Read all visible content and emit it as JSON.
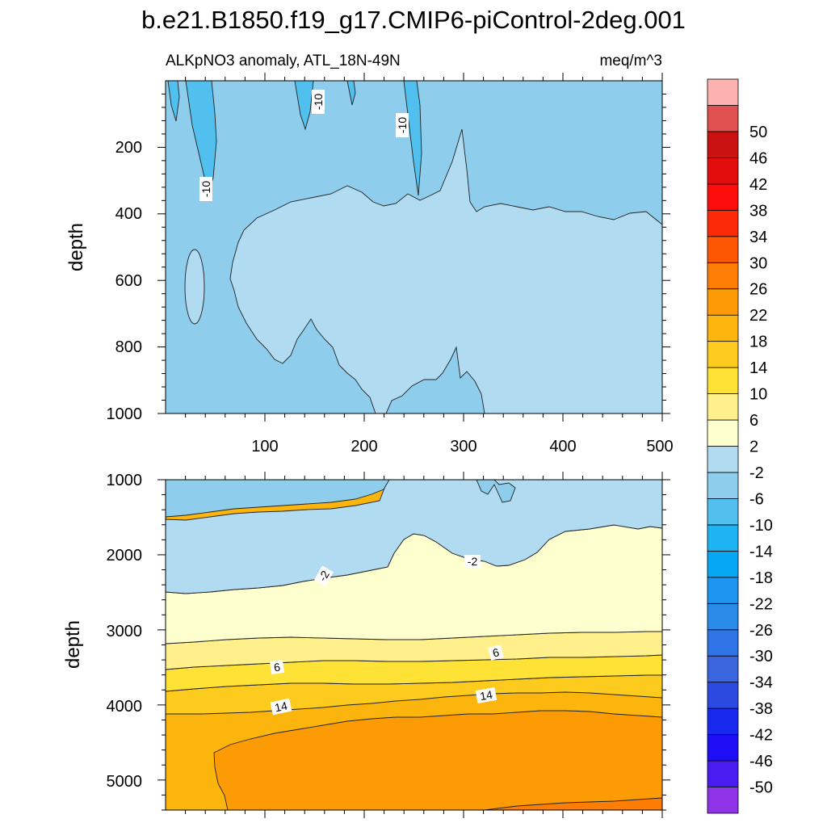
{
  "title": "b.e21.B1850.f19_g17.CMIP6-piControl-2deg.001",
  "colors": {
    "levels": [
      "#8e33e8",
      "#4b1cf2",
      "#1d0ef6",
      "#1a29ee",
      "#2c49e0",
      "#3a65dc",
      "#2f74e6",
      "#2a8ae8",
      "#1d96f2",
      "#06a8f5",
      "#1eb4f4",
      "#52c0ee",
      "#8ecdec",
      "#b1dbf1",
      "#feffcf",
      "#fff08c",
      "#fee236",
      "#fdcb1e",
      "#fcb50c",
      "#fd9b05",
      "#fd7d05",
      "#fd5703",
      "#fd2a07",
      "#fd0c0c",
      "#e30d0d",
      "#cb1212",
      "#e05050",
      "#fdb1b1"
    ]
  },
  "colorbar": {
    "labels": [
      "-50",
      "-46",
      "-42",
      "-38",
      "-34",
      "-30",
      "-26",
      "-22",
      "-18",
      "-14",
      "-10",
      "-6",
      "-2",
      "2",
      "6",
      "10",
      "14",
      "18",
      "22",
      "26",
      "30",
      "34",
      "38",
      "42",
      "46",
      "50"
    ]
  },
  "chart_data": [
    {
      "type": "contour",
      "left_label": "ALKpNO3 anomaly, ATL_18N-49N",
      "right_label": "meq/m^3",
      "ylabel": "depth",
      "xlim": [
        0,
        500
      ],
      "ylim": [
        1000,
        0
      ],
      "x_ticks": [
        "100",
        "200",
        "300",
        "400",
        "500"
      ],
      "y_ticks": [
        "200",
        "400",
        "600",
        "800",
        "1000"
      ],
      "contour_labels": [
        "-10",
        "-10",
        "-10"
      ],
      "regions": [
        {
          "level": "-10 to -6",
          "description": "background upper ocean"
        },
        {
          "level": "-6 to -2",
          "description": "wedge 600 m"
        },
        {
          "level": "-14 to -10",
          "description": "streaks near surface"
        }
      ]
    },
    {
      "type": "contour",
      "ylabel": "depth",
      "xlim": [
        0,
        500
      ],
      "ylim": [
        5400,
        1000
      ],
      "y_ticks": [
        "1000",
        "2000",
        "3000",
        "4000",
        "5000"
      ],
      "contour_labels": [
        "-2",
        "-2",
        "6",
        "6",
        "14",
        "14"
      ],
      "boundaries": [
        {
          "lower_level": "-10",
          "upper_level": "-6",
          "depth_west": 1480,
          "depth_east": 1000
        },
        {
          "lower_level": "-6",
          "upper_level": "-2",
          "depth_west": 2470,
          "depth_east": 1650
        },
        {
          "lower_level": "-2",
          "upper_level": "2",
          "depth_west": 3160,
          "depth_east": 2800
        },
        {
          "lower_level": "2",
          "upper_level": "6",
          "depth_west": 3500,
          "depth_east": 3250
        },
        {
          "lower_level": "6",
          "upper_level": "10",
          "depth_west": 3750,
          "depth_east": 3570
        },
        {
          "lower_level": "10",
          "upper_level": "14",
          "depth_west": 4020,
          "depth_east": 3850
        },
        {
          "lower_level": "14",
          "upper_level": "18",
          "depth_west": 4600,
          "depth_east": 4100
        },
        {
          "lower_level": "18",
          "upper_level": "22",
          "depth_west": 5400,
          "depth_east": 5300
        }
      ]
    }
  ]
}
